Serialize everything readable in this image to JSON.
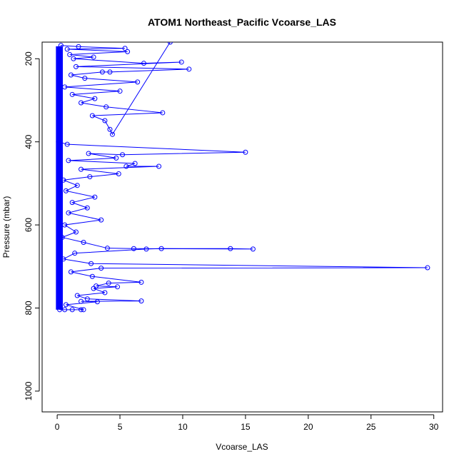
{
  "chart_data": {
    "type": "line",
    "title": "ATOM1 Northeast_Pacific Vcoarse_LAS",
    "xlabel": "Vcoarse_LAS",
    "ylabel": "Pressure (mbar)",
    "xlim": [
      -1.2,
      30.7
    ],
    "ylim": [
      1050,
      160
    ],
    "y_reversed": true,
    "x_ticks": [
      0,
      5,
      10,
      15,
      20,
      25,
      30
    ],
    "y_ticks": [
      200,
      400,
      600,
      800,
      1000
    ],
    "grid": false,
    "legend": "none",
    "series_color": "#0000ff",
    "marker": "open-circle",
    "series": [
      {
        "values": [
          [
            9.0,
            160
          ],
          [
            4.4,
            382
          ],
          [
            4.2,
            370
          ],
          [
            3.8,
            349
          ],
          [
            2.8,
            337
          ],
          [
            8.4,
            330
          ],
          [
            3.9,
            316
          ],
          [
            1.9,
            306
          ],
          [
            3.0,
            296
          ],
          [
            1.2,
            286
          ],
          [
            5.0,
            278
          ],
          [
            0.6,
            268
          ],
          [
            6.4,
            256
          ],
          [
            2.2,
            247
          ],
          [
            1.1,
            239
          ],
          [
            3.6,
            232
          ],
          [
            4.2,
            232
          ],
          [
            10.5,
            225
          ],
          [
            1.5,
            219
          ],
          [
            9.9,
            208
          ],
          [
            6.9,
            211
          ],
          [
            1.3,
            200
          ],
          [
            2.9,
            196
          ],
          [
            1.0,
            190
          ],
          [
            5.6,
            183
          ],
          [
            0.8,
            177
          ],
          [
            5.4,
            175
          ],
          [
            1.7,
            171
          ],
          [
            0.3,
            168
          ],
          [
            0.1,
            400
          ],
          [
            0.8,
            406
          ],
          [
            15.0,
            425
          ],
          [
            5.2,
            431
          ],
          [
            2.5,
            428
          ],
          [
            4.7,
            439
          ],
          [
            0.9,
            445
          ],
          [
            6.2,
            452
          ],
          [
            5.5,
            459
          ],
          [
            8.1,
            459
          ],
          [
            1.9,
            466
          ],
          [
            4.9,
            477
          ],
          [
            2.6,
            484
          ],
          [
            0.5,
            492
          ],
          [
            1.6,
            505
          ],
          [
            0.7,
            518
          ],
          [
            3.0,
            533
          ],
          [
            1.2,
            546
          ],
          [
            2.4,
            559
          ],
          [
            0.9,
            571
          ],
          [
            3.5,
            588
          ],
          [
            0.6,
            600
          ],
          [
            1.5,
            617
          ],
          [
            0.4,
            630
          ],
          [
            2.1,
            642
          ],
          [
            4.0,
            656
          ],
          [
            6.1,
            657
          ],
          [
            15.6,
            658
          ],
          [
            13.8,
            657
          ],
          [
            8.3,
            657
          ],
          [
            7.1,
            658
          ],
          [
            1.4,
            668
          ],
          [
            0.5,
            682
          ],
          [
            2.7,
            693
          ],
          [
            29.5,
            703
          ],
          [
            3.5,
            704
          ],
          [
            1.1,
            713
          ],
          [
            2.8,
            724
          ],
          [
            6.7,
            738
          ],
          [
            4.1,
            740
          ],
          [
            3.1,
            747
          ],
          [
            4.8,
            749
          ],
          [
            2.9,
            753
          ],
          [
            3.8,
            763
          ],
          [
            1.6,
            770
          ],
          [
            2.4,
            778
          ],
          [
            6.7,
            783
          ],
          [
            1.9,
            784
          ],
          [
            3.2,
            785
          ],
          [
            0.7,
            792
          ],
          [
            2.1,
            804
          ],
          [
            1.9,
            804
          ],
          [
            1.2,
            804
          ],
          [
            0.6,
            804
          ],
          [
            0.2,
            804
          ]
        ]
      }
    ]
  }
}
